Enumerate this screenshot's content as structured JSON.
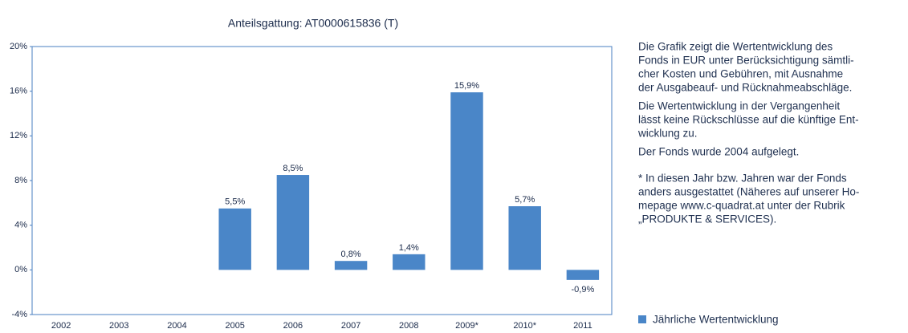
{
  "chart_data": {
    "type": "bar",
    "title": "Anteilsgattung: AT0000615836  (T)",
    "categories": [
      "2002",
      "2003",
      "2004",
      "2005",
      "2006",
      "2007",
      "2008",
      "2009*",
      "2010*",
      "2011"
    ],
    "series": [
      {
        "name": "Jährliche Wertentwicklung",
        "color": "#4a86c8",
        "values": [
          null,
          null,
          null,
          5.5,
          8.5,
          0.8,
          1.4,
          15.9,
          5.7,
          -0.9
        ],
        "value_labels": [
          null,
          null,
          null,
          "5,5%",
          "8,5%",
          "0,8%",
          "1,4%",
          "15,9%",
          "5,7%",
          "-0,9%"
        ]
      }
    ],
    "ylim": [
      -4,
      20
    ],
    "yticks": [
      {
        "value": -4,
        "label": "-4%"
      },
      {
        "value": 0,
        "label": "0%"
      },
      {
        "value": 4,
        "label": "4%"
      },
      {
        "value": 8,
        "label": "8%"
      },
      {
        "value": 12,
        "label": "12%"
      },
      {
        "value": 16,
        "label": "16%"
      },
      {
        "value": 20,
        "label": "20%"
      }
    ],
    "grid": false,
    "notes": [
      [
        "Die Grafik zeigt die Wertentwicklung des",
        "Fonds in EUR unter Berücksichtigung sämtli-",
        "cher Kosten und Gebühren, mit Ausnahme",
        "der Ausgabeauf- und Rücknahmeabschläge."
      ],
      [
        "Die Wertentwicklung in der Vergangenheit",
        "lässt keine Rückschlüsse auf die künftige Ent-",
        "wicklung zu."
      ],
      [
        "Der Fonds wurde 2004 aufgelegt."
      ],
      [
        "* In diesen Jahr bzw. Jahren war der Fonds",
        "anders ausgestattet (Näheres auf unserer Ho-",
        "mepage www.c-quadrat.at unter der Rubrik",
        "„PRODUKTE & SERVICES)."
      ]
    ]
  }
}
